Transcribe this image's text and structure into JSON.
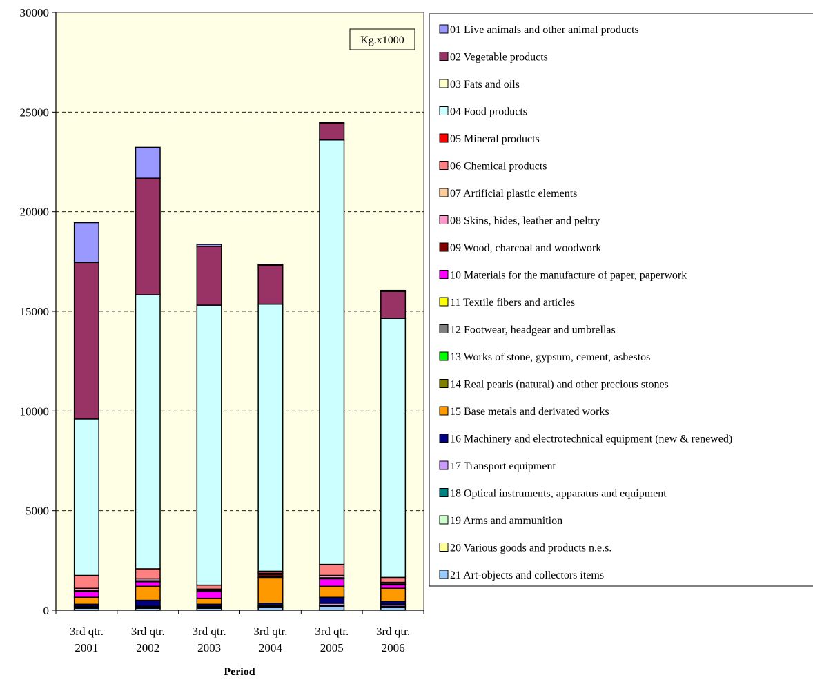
{
  "chart_data": {
    "type": "bar",
    "stacked": true,
    "unit_label": "Kg.x1000",
    "xlabel": "Period",
    "ylabel": "",
    "ylim": [
      0,
      30000
    ],
    "yticks": [
      0,
      5000,
      10000,
      15000,
      20000,
      25000,
      30000
    ],
    "grid": "horizontal dashed",
    "legend_position": "right",
    "categories": [
      [
        "3rd qtr.",
        "2001"
      ],
      [
        "3rd qtr.",
        "2002"
      ],
      [
        "3rd qtr.",
        "2003"
      ],
      [
        "3rd qtr.",
        "2004"
      ],
      [
        "3rd qtr.",
        "2005"
      ],
      [
        "3rd qtr.",
        "2006"
      ]
    ],
    "series": [
      {
        "name": "01 Live animals and other animal products",
        "color": "#9999FF",
        "values": [
          2000,
          1550,
          100,
          50,
          50,
          50
        ]
      },
      {
        "name": "02 Vegetable products",
        "color": "#993366",
        "values": [
          7850,
          5850,
          2950,
          1950,
          850,
          1350
        ]
      },
      {
        "name": "03 Fats and oils",
        "color": "#FFFFCC",
        "values": [
          0,
          0,
          0,
          0,
          0,
          0
        ]
      },
      {
        "name": "04 Food products",
        "color": "#CCFFFF",
        "values": [
          7850,
          13750,
          14050,
          13400,
          21300,
          13000
        ]
      },
      {
        "name": "05 Mineral products",
        "color": "#FF0000",
        "values": [
          0,
          0,
          0,
          0,
          0,
          0
        ]
      },
      {
        "name": "06 Chemical products",
        "color": "#FF8080",
        "values": [
          650,
          500,
          200,
          100,
          550,
          250
        ]
      },
      {
        "name": "07 Artificial plastic elements",
        "color": "#FFCC99",
        "values": [
          0,
          0,
          0,
          0,
          0,
          0
        ]
      },
      {
        "name": "08 Skins, hides, leather and peltry",
        "color": "#FF99CC",
        "values": [
          120,
          100,
          60,
          60,
          120,
          80
        ]
      },
      {
        "name": "09 Wood, charcoal and woodwork",
        "color": "#800000",
        "values": [
          50,
          50,
          50,
          100,
          50,
          50
        ]
      },
      {
        "name": "10 Materials for the manufacture of paper, paperwork",
        "color": "#FF00FF",
        "values": [
          280,
          230,
          350,
          50,
          380,
          170
        ]
      },
      {
        "name": "11 Textile fibers and articles",
        "color": "#FFFF00",
        "values": [
          0,
          0,
          0,
          0,
          0,
          0
        ]
      },
      {
        "name": "12 Footwear, headgear and umbrellas",
        "color": "#808080",
        "values": [
          0,
          0,
          0,
          0,
          0,
          0
        ]
      },
      {
        "name": "13 Works of stone, gypsum, cement, asbestos",
        "color": "#00FF00",
        "values": [
          0,
          0,
          0,
          0,
          0,
          0
        ]
      },
      {
        "name": "14 Real pearls (natural) and other precious stones",
        "color": "#808000",
        "values": [
          0,
          0,
          0,
          0,
          0,
          0
        ]
      },
      {
        "name": "15 Base metals and derivated works",
        "color": "#FF9900",
        "values": [
          350,
          700,
          300,
          1300,
          550,
          650
        ]
      },
      {
        "name": "16 Machinery and electrotechnical equipment (new & renewed)",
        "color": "#000080",
        "values": [
          100,
          300,
          100,
          100,
          300,
          150
        ]
      },
      {
        "name": "17 Transport equipment",
        "color": "#CC99FF",
        "values": [
          50,
          50,
          50,
          50,
          100,
          100
        ]
      },
      {
        "name": "18 Optical instruments, apparatus and equipment",
        "color": "#008080",
        "values": [
          0,
          0,
          0,
          0,
          0,
          0
        ]
      },
      {
        "name": "19 Arms and ammunition",
        "color": "#CCFFCC",
        "values": [
          0,
          0,
          0,
          0,
          0,
          0
        ]
      },
      {
        "name": "20 Various goods and products n.e.s.",
        "color": "#FFFF99",
        "values": [
          50,
          50,
          50,
          50,
          50,
          50
        ]
      },
      {
        "name": "21 Art-objects and collectors items",
        "color": "#99CCFF",
        "values": [
          100,
          100,
          100,
          150,
          200,
          150
        ]
      }
    ]
  }
}
